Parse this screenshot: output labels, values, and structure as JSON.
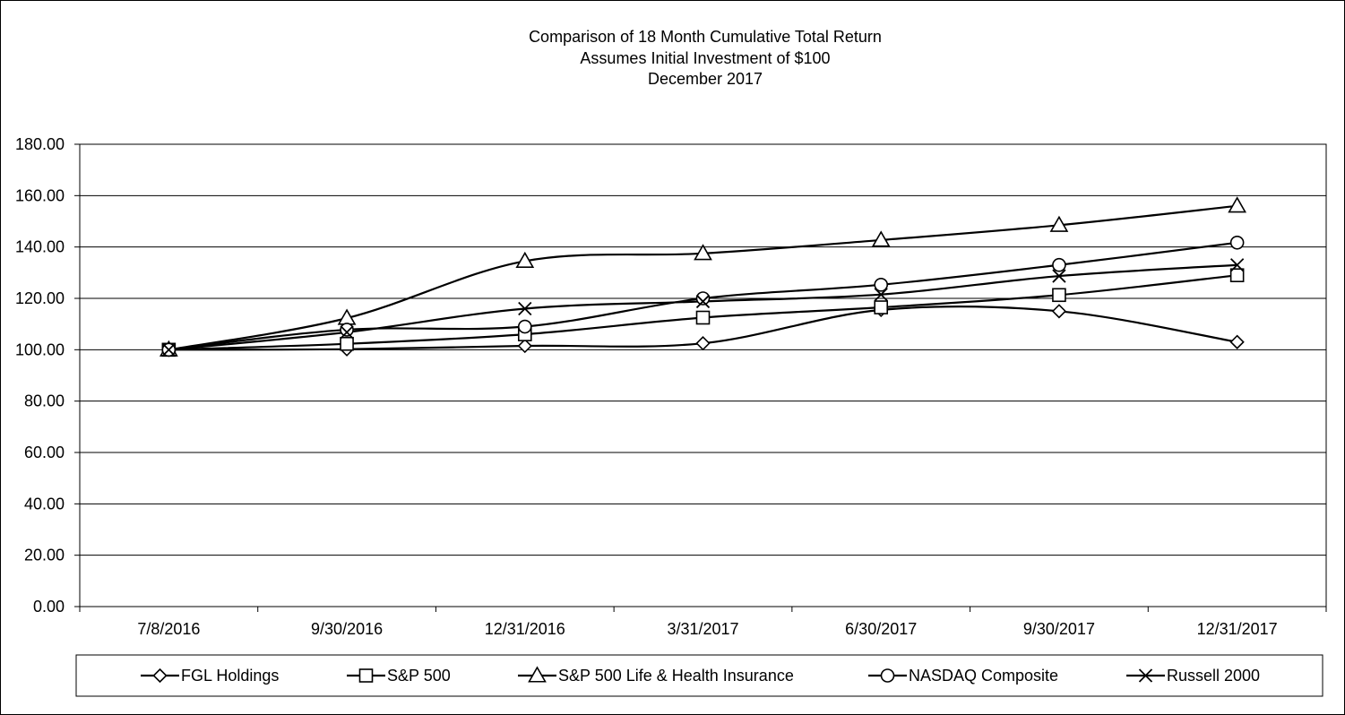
{
  "chart_data": {
    "type": "line",
    "title_lines": [
      "Comparison of 18 Month Cumulative Total Return",
      "Assumes Initial Investment of $100",
      "December 2017"
    ],
    "categories": [
      "7/8/2016",
      "9/30/2016",
      "12/31/2016",
      "3/31/2017",
      "6/30/2017",
      "9/30/2017",
      "12/31/2017"
    ],
    "ylim": [
      0,
      180
    ],
    "yticks": [
      "0.00",
      "20.00",
      "40.00",
      "60.00",
      "80.00",
      "100.00",
      "120.00",
      "140.00",
      "160.00",
      "180.00"
    ],
    "grid": true,
    "legend_position": "bottom",
    "series": [
      {
        "name": "FGL Holdings",
        "marker": "diamond",
        "values": [
          100,
          100.2,
          101.5,
          102.5,
          115.5,
          115,
          103
        ]
      },
      {
        "name": "S&P 500",
        "marker": "square",
        "values": [
          100,
          102.3,
          106,
          112.5,
          116.5,
          121.3,
          129
        ]
      },
      {
        "name": "S&P 500 Life & Health Insurance",
        "marker": "triangle",
        "values": [
          100,
          112.3,
          134.5,
          137.5,
          142.7,
          148.5,
          156
        ]
      },
      {
        "name": "NASDAQ Composite",
        "marker": "circle",
        "values": [
          100,
          107.8,
          109,
          120,
          125.3,
          133,
          141.7
        ]
      },
      {
        "name": "Russell 2000",
        "marker": "x",
        "values": [
          100,
          106.8,
          116,
          118.8,
          121.5,
          128.7,
          133
        ]
      }
    ]
  }
}
